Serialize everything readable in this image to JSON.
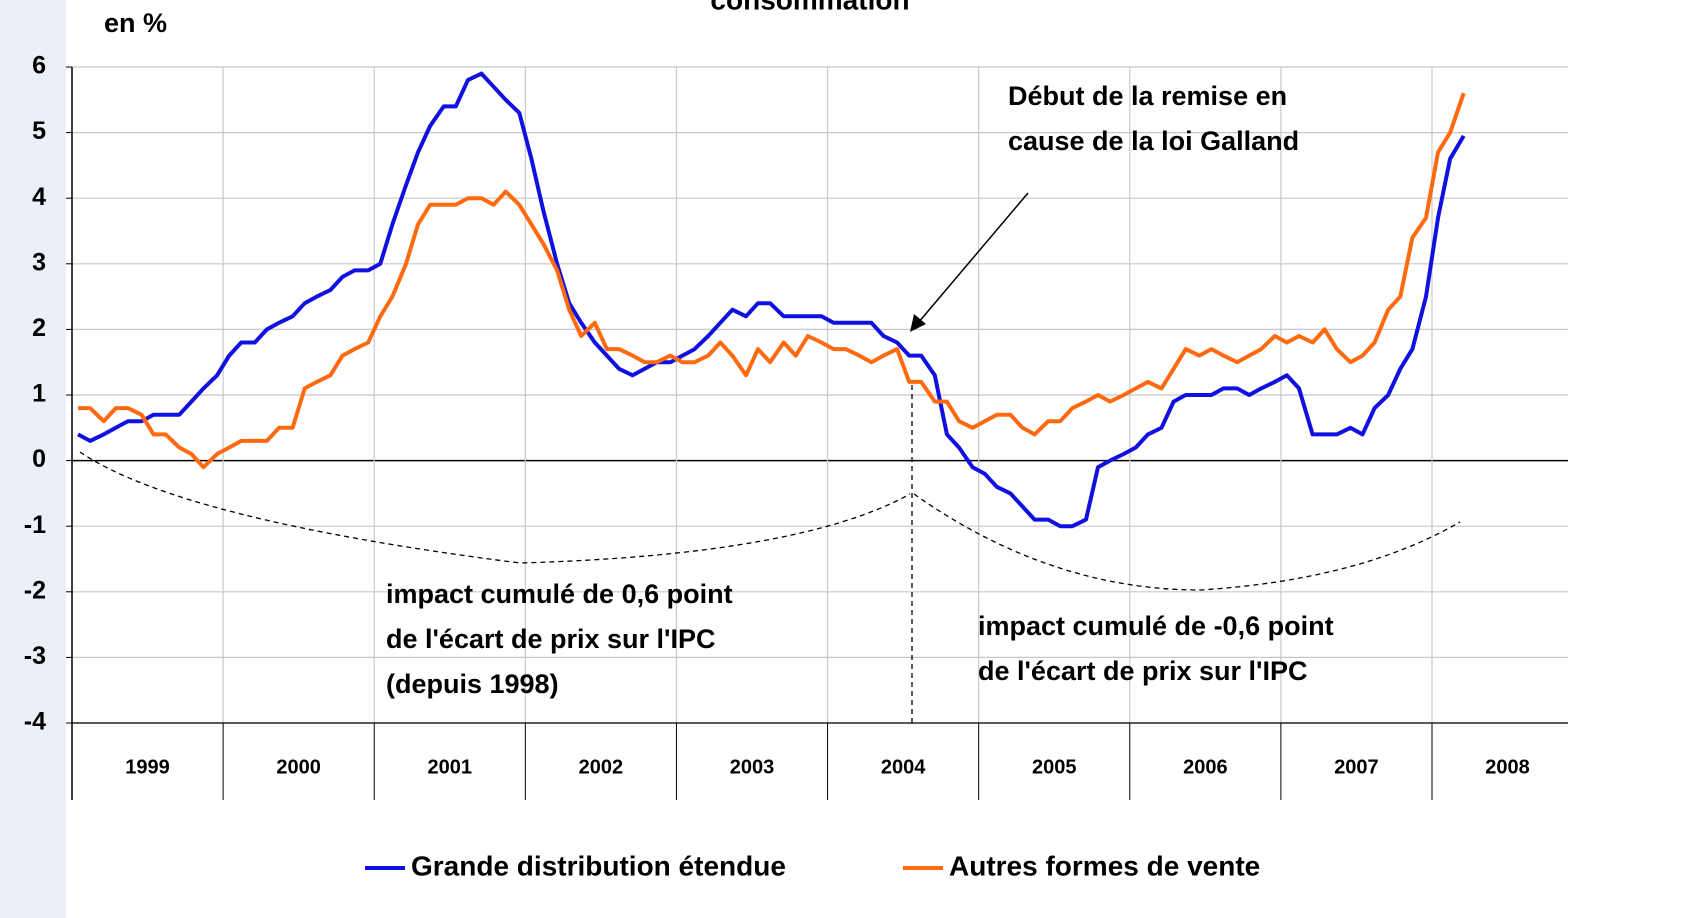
{
  "chart_data": {
    "type": "line",
    "title": "consommation",
    "y_label": "en %",
    "x": [
      1999.04,
      1999.12,
      1999.21,
      1999.29,
      1999.37,
      1999.46,
      1999.54,
      1999.62,
      1999.71,
      1999.79,
      1999.87,
      1999.96,
      2000.04,
      2000.12,
      2000.21,
      2000.29,
      2000.37,
      2000.46,
      2000.54,
      2000.62,
      2000.71,
      2000.79,
      2000.87,
      2000.96,
      2001.04,
      2001.12,
      2001.21,
      2001.29,
      2001.37,
      2001.46,
      2001.54,
      2001.62,
      2001.71,
      2001.79,
      2001.87,
      2001.96,
      2002.04,
      2002.12,
      2002.21,
      2002.29,
      2002.37,
      2002.46,
      2002.54,
      2002.62,
      2002.71,
      2002.79,
      2002.87,
      2002.96,
      2003.04,
      2003.12,
      2003.21,
      2003.29,
      2003.37,
      2003.46,
      2003.54,
      2003.62,
      2003.71,
      2003.79,
      2003.87,
      2003.96,
      2004.04,
      2004.12,
      2004.21,
      2004.29,
      2004.37,
      2004.46,
      2004.54,
      2004.62,
      2004.71,
      2004.79,
      2004.87,
      2004.96,
      2005.04,
      2005.12,
      2005.21,
      2005.29,
      2005.37,
      2005.46,
      2005.54,
      2005.62,
      2005.71,
      2005.79,
      2005.87,
      2005.96,
      2006.04,
      2006.12,
      2006.21,
      2006.29,
      2006.37,
      2006.46,
      2006.54,
      2006.62,
      2006.71,
      2006.79,
      2006.87,
      2006.96,
      2007.04,
      2007.12,
      2007.21,
      2007.29,
      2007.37,
      2007.46,
      2007.54,
      2007.62,
      2007.71,
      2007.79,
      2007.87,
      2007.96,
      2008.04,
      2008.12,
      2008.21
    ],
    "series": [
      {
        "name": "Grande distribution étendue",
        "color": "#1010e0",
        "values": [
          0.4,
          0.3,
          0.4,
          0.5,
          0.6,
          0.6,
          0.7,
          0.7,
          0.7,
          0.9,
          1.1,
          1.3,
          1.6,
          1.8,
          1.8,
          2.0,
          2.1,
          2.2,
          2.4,
          2.5,
          2.6,
          2.8,
          2.9,
          2.9,
          3.0,
          3.6,
          4.2,
          4.7,
          5.1,
          5.4,
          5.4,
          5.8,
          5.9,
          5.7,
          5.5,
          5.3,
          4.6,
          3.8,
          3.0,
          2.4,
          2.1,
          1.8,
          1.6,
          1.4,
          1.3,
          1.4,
          1.5,
          1.5,
          1.6,
          1.7,
          1.9,
          2.1,
          2.3,
          2.2,
          2.4,
          2.4,
          2.2,
          2.2,
          2.2,
          2.2,
          2.1,
          2.1,
          2.1,
          2.1,
          1.9,
          1.8,
          1.6,
          1.6,
          1.3,
          0.4,
          0.2,
          -0.1,
          -0.2,
          -0.4,
          -0.5,
          -0.7,
          -0.9,
          -0.9,
          -1.0,
          -1.0,
          -0.9,
          -0.1,
          0.0,
          0.1,
          0.2,
          0.4,
          0.5,
          0.9,
          1.0,
          1.0,
          1.0,
          1.1,
          1.1,
          1.0,
          1.1,
          1.2,
          1.3,
          1.1,
          0.4,
          0.4,
          0.4,
          0.5,
          0.4,
          0.8,
          1.0,
          1.4,
          1.7,
          2.5,
          3.7,
          4.6,
          4.95
        ]
      },
      {
        "name": "Autres formes de vente",
        "color": "#ff6a10",
        "values": [
          0.8,
          0.8,
          0.6,
          0.8,
          0.8,
          0.7,
          0.4,
          0.4,
          0.2,
          0.1,
          -0.1,
          0.1,
          0.2,
          0.3,
          0.3,
          0.3,
          0.5,
          0.5,
          1.1,
          1.2,
          1.3,
          1.6,
          1.7,
          1.8,
          2.2,
          2.5,
          3.0,
          3.6,
          3.9,
          3.9,
          3.9,
          4.0,
          4.0,
          3.9,
          4.1,
          3.9,
          3.6,
          3.3,
          2.9,
          2.3,
          1.9,
          2.1,
          1.7,
          1.7,
          1.6,
          1.5,
          1.5,
          1.6,
          1.5,
          1.5,
          1.6,
          1.8,
          1.6,
          1.3,
          1.7,
          1.5,
          1.8,
          1.6,
          1.9,
          1.8,
          1.7,
          1.7,
          1.6,
          1.5,
          1.6,
          1.7,
          1.2,
          1.2,
          0.9,
          0.9,
          0.6,
          0.5,
          0.6,
          0.7,
          0.7,
          0.5,
          0.4,
          0.6,
          0.6,
          0.8,
          0.9,
          1.0,
          0.9,
          1.0,
          1.1,
          1.2,
          1.1,
          1.4,
          1.7,
          1.6,
          1.7,
          1.6,
          1.5,
          1.6,
          1.7,
          1.9,
          1.8,
          1.9,
          1.8,
          2.0,
          1.7,
          1.5,
          1.6,
          1.8,
          2.3,
          2.5,
          3.4,
          3.7,
          4.7,
          5.0,
          5.6
        ]
      }
    ],
    "xlim": [
      1999,
      2008.9
    ],
    "xticks": [
      {
        "value": 1999.5,
        "label": "1999"
      },
      {
        "value": 2000.5,
        "label": "2000"
      },
      {
        "value": 2001.5,
        "label": "2001"
      },
      {
        "value": 2002.5,
        "label": "2002"
      },
      {
        "value": 2003.5,
        "label": "2003"
      },
      {
        "value": 2004.5,
        "label": "2004"
      },
      {
        "value": 2005.5,
        "label": "2005"
      },
      {
        "value": 2006.5,
        "label": "2006"
      },
      {
        "value": 2007.5,
        "label": "2007"
      },
      {
        "value": 2008.5,
        "label": "2008"
      }
    ],
    "ylim": [
      -4,
      6
    ],
    "yticks": [
      -4,
      -3,
      -2,
      -1,
      0,
      1,
      2,
      3,
      4,
      5,
      6
    ],
    "grid": true,
    "legend": "bottom",
    "annotations": [
      [
        "Début de la remise en",
        "cause de la loi Galland"
      ],
      [
        "impact cumulé de 0,6 point",
        "de l'écart de prix sur l'IPC",
        "(depuis 1998)"
      ],
      [
        "impact cumulé de -0,6 point",
        "de l'écart de prix sur l'IPC"
      ]
    ]
  }
}
